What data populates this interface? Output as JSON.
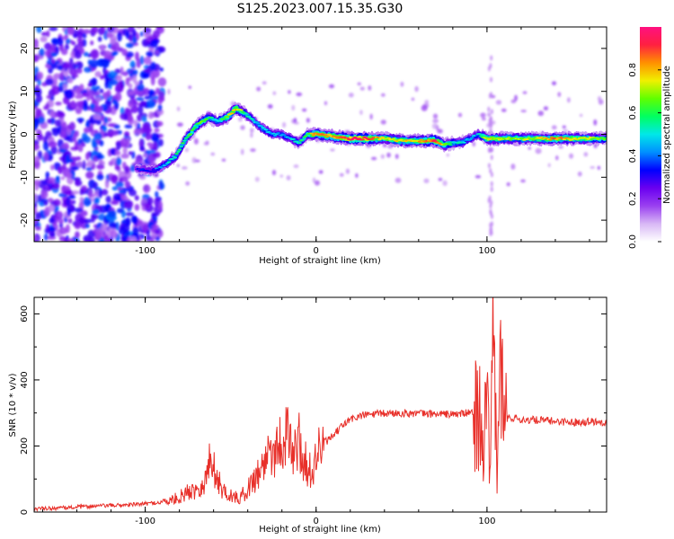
{
  "title": "S125.2023.007.15.35.G30",
  "chart_data": [
    {
      "type": "heatmap",
      "xlabel": "Height of straight line (km)",
      "ylabel": "Frequency (Hz)",
      "xlim": [
        -165,
        170
      ],
      "ylim": [
        -25,
        25
      ],
      "xticks": [
        -100,
        0,
        100
      ],
      "yticks": [
        -20,
        -10,
        0,
        10,
        20
      ],
      "colorbar": {
        "label": "Normalized spectral amplitude",
        "ticks": [
          0.0,
          0.2,
          0.4,
          0.6,
          0.8
        ],
        "range": [
          0,
          1
        ],
        "colors": [
          "#ffffff",
          "#d8b8f5",
          "#9a40f0",
          "#6a00f0",
          "#0000ff",
          "#0090ff",
          "#00e8e8",
          "#00ff60",
          "#60ff00",
          "#f0f000",
          "#ff9000",
          "#ff2040",
          "#ff1080"
        ]
      },
      "ridge": {
        "x": [
          -105,
          -95,
          -88,
          -82,
          -76,
          -70,
          -63,
          -58,
          -52,
          -47,
          -42,
          -36,
          -30,
          -25,
          -20,
          -15,
          -10,
          -5,
          0,
          10,
          20,
          30,
          40,
          50,
          60,
          70,
          75,
          80,
          85,
          90,
          95,
          100,
          110,
          120,
          130,
          140,
          150,
          160,
          170
        ],
        "y": [
          -8,
          -8.5,
          -7,
          -5,
          -1,
          2,
          4,
          3,
          4,
          6,
          5,
          3,
          1,
          0,
          0,
          -1,
          -2,
          0,
          0,
          -0.5,
          -1,
          -1,
          -1,
          -1.5,
          -1.5,
          -1.5,
          -2.5,
          -2,
          -2,
          -1,
          0,
          -1,
          -1,
          -1,
          -1,
          -1,
          -1,
          -1,
          -1
        ],
        "amp": [
          0.3,
          0.35,
          0.45,
          0.55,
          0.6,
          0.65,
          0.6,
          0.5,
          0.7,
          0.8,
          0.6,
          0.45,
          0.5,
          0.45,
          0.45,
          0.45,
          0.55,
          0.6,
          0.85,
          0.8,
          0.95,
          0.95,
          0.7,
          0.75,
          0.8,
          0.9,
          0.7,
          0.55,
          0.5,
          0.45,
          0.45,
          0.75,
          0.7,
          0.7,
          0.7,
          0.85,
          0.75,
          0.7,
          0.6
        ]
      }
    },
    {
      "type": "line",
      "xlabel": "Height of straight line (km)",
      "ylabel": "SNR (10 * v/v)",
      "xlim": [
        -165,
        170
      ],
      "ylim": [
        0,
        650
      ],
      "xticks": [
        -100,
        0,
        100
      ],
      "yticks": [
        0,
        200,
        400,
        600
      ],
      "color": "#e8302a",
      "x": [
        -165,
        -150,
        -140,
        -130,
        -120,
        -110,
        -100,
        -90,
        -85,
        -80,
        -75,
        -70,
        -65,
        -62,
        -60,
        -58,
        -55,
        -50,
        -45,
        -40,
        -35,
        -30,
        -28,
        -25,
        -20,
        -18,
        -15,
        -12,
        -10,
        -8,
        -5,
        -2,
        0,
        5,
        10,
        15,
        20,
        25,
        30,
        40,
        50,
        60,
        70,
        80,
        90,
        95,
        98,
        100,
        102,
        104,
        106,
        108,
        110,
        115,
        120,
        130,
        140,
        150,
        160,
        170
      ],
      "y": [
        10,
        12,
        15,
        18,
        20,
        22,
        25,
        30,
        35,
        45,
        60,
        70,
        90,
        160,
        140,
        100,
        70,
        50,
        40,
        70,
        110,
        150,
        200,
        180,
        220,
        240,
        200,
        180,
        220,
        160,
        140,
        110,
        180,
        210,
        230,
        260,
        280,
        290,
        295,
        298,
        300,
        298,
        297,
        296,
        300,
        305,
        220,
        300,
        100,
        620,
        80,
        460,
        290,
        285,
        280,
        278,
        275,
        272,
        275,
        272
      ]
    }
  ]
}
